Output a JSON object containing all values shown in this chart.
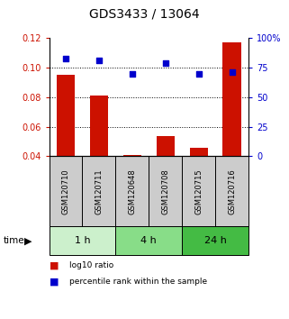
{
  "title": "GDS3433 / 13064",
  "samples": [
    "GSM120710",
    "GSM120711",
    "GSM120648",
    "GSM120708",
    "GSM120715",
    "GSM120716"
  ],
  "log10_ratio": [
    0.095,
    0.081,
    0.041,
    0.054,
    0.046,
    0.117
  ],
  "percentile_rank": [
    83,
    81,
    70,
    79,
    70,
    71
  ],
  "time_groups": [
    {
      "label": "1 h",
      "n": 2,
      "color": "#ccf0cc"
    },
    {
      "label": "4 h",
      "n": 2,
      "color": "#88dd88"
    },
    {
      "label": "24 h",
      "n": 2,
      "color": "#44bb44"
    }
  ],
  "bar_color": "#cc1100",
  "scatter_color": "#0000cc",
  "left_ylim": [
    0.04,
    0.12
  ],
  "right_ylim": [
    0,
    100
  ],
  "left_yticks": [
    0.04,
    0.06,
    0.08,
    0.1,
    0.12
  ],
  "right_yticks": [
    0,
    25,
    50,
    75,
    100
  ],
  "right_yticklabels": [
    "0",
    "25",
    "50",
    "75",
    "100%"
  ],
  "dotted_lines": [
    0.1,
    0.08,
    0.06
  ],
  "title_fontsize": 10,
  "axis_tick_fontsize": 7,
  "sample_box_color": "#cccccc",
  "legend_bar_label": "log10 ratio",
  "legend_scatter_label": "percentile rank within the sample"
}
